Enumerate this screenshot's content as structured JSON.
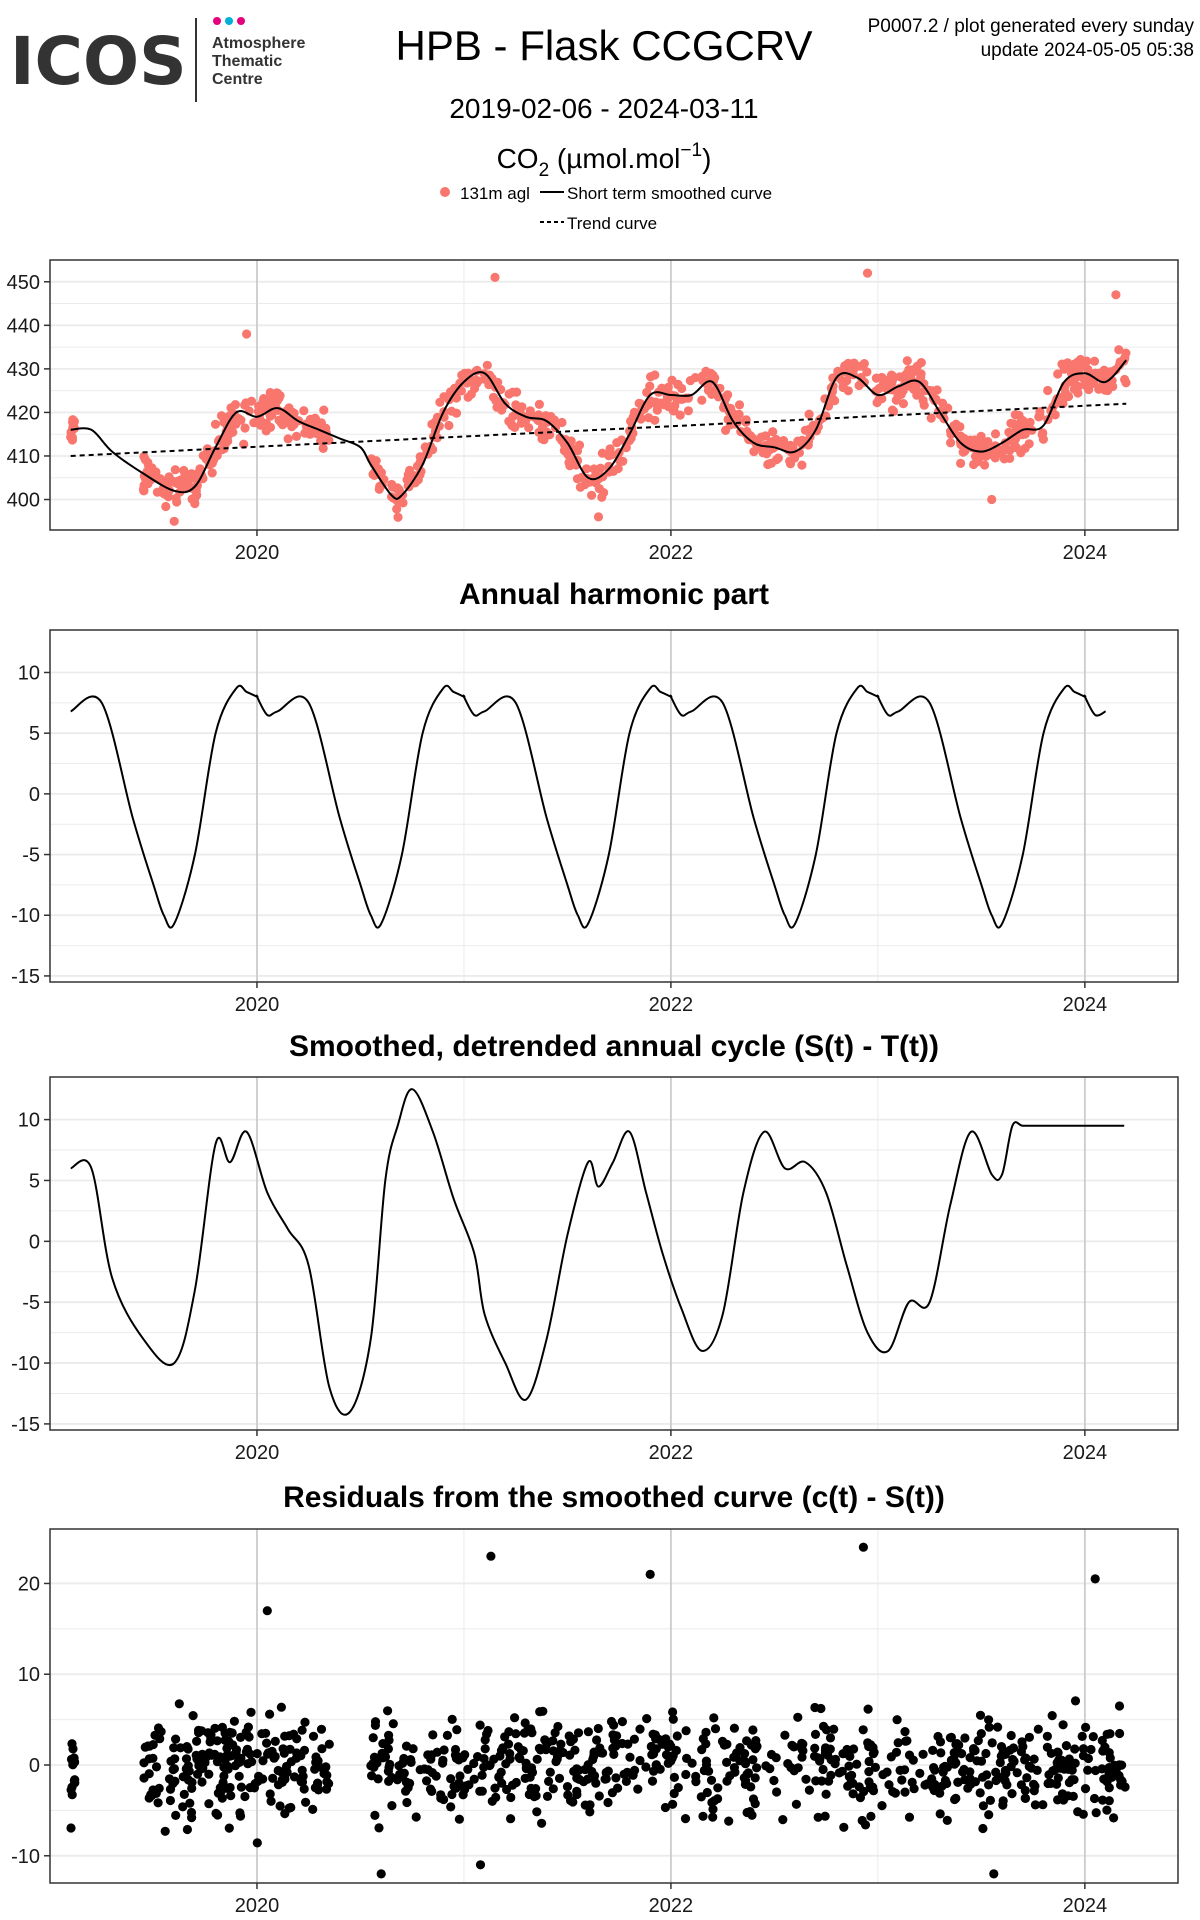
{
  "header": {
    "logo_word": "ICOS",
    "logo_sub": [
      "Atmosphere",
      "Thematic",
      "Centre"
    ],
    "logo_dot_colors": [
      "#e5007e",
      "#00b0d8",
      "#e5007e"
    ],
    "title": "HPB - Flask CCGCRV",
    "date_range": "2019-02-06 - 2024-03-11",
    "species_label": {
      "base": "CO",
      "sub": "2",
      "unit_open": " (µmol.mol",
      "sup": "−1",
      "unit_close": ")"
    },
    "meta_line1": "P0007.2 / plot generated every sunday",
    "meta_line2": "update  2024-05-05 05:38"
  },
  "legend": {
    "points": "131m agl",
    "smoothed": "Short term smoothed curve",
    "trend": "Trend curve"
  },
  "colors": {
    "points": "#f8766d",
    "line": "#000000",
    "grid_major": "#cccccc",
    "grid_minor": "#ebebeb",
    "panel_border": "#333333"
  },
  "chart_data": [
    {
      "type": "scatter",
      "title": "",
      "xlabel": "",
      "ylabel": "",
      "xlim": [
        2019.0,
        2024.45
      ],
      "ylim": [
        393,
        455
      ],
      "x_ticks": [
        2020,
        2022,
        2024
      ],
      "x_tick_labels": [
        "2020",
        "2022",
        "2024"
      ],
      "y_ticks": [
        400,
        410,
        420,
        430,
        440,
        450
      ],
      "y_tick_labels": [
        "400",
        "410",
        "420",
        "430",
        "440",
        "450"
      ],
      "grid": true,
      "series": [
        {
          "name": "131m agl",
          "kind": "points",
          "sample_count": 900,
          "extremes": [
            [
              2019.6,
              395
            ],
            [
              2021.65,
              396
            ],
            [
              2021.15,
              451
            ],
            [
              2022.95,
              452
            ],
            [
              2023.55,
              400
            ],
            [
              2024.15,
              447
            ],
            [
              2019.95,
              438
            ]
          ]
        },
        {
          "name": "Short term smoothed curve",
          "kind": "line",
          "x": [
            2019.1,
            2019.2,
            2019.3,
            2019.45,
            2019.6,
            2019.7,
            2019.8,
            2019.9,
            2020.0,
            2020.1,
            2020.2,
            2020.3,
            2020.4,
            2020.5,
            2020.55,
            2020.65,
            2020.7,
            2020.8,
            2020.9,
            2021.0,
            2021.1,
            2021.2,
            2021.3,
            2021.4,
            2021.5,
            2021.6,
            2021.7,
            2021.8,
            2021.9,
            2022.0,
            2022.1,
            2022.2,
            2022.3,
            2022.4,
            2022.5,
            2022.6,
            2022.7,
            2022.8,
            2022.9,
            2023.0,
            2023.1,
            2023.2,
            2023.3,
            2023.4,
            2023.5,
            2023.6,
            2023.7,
            2023.8,
            2023.9,
            2024.0,
            2024.1,
            2024.2
          ],
          "y": [
            416,
            416,
            411,
            406,
            402,
            403,
            412,
            420,
            419,
            421,
            418,
            416,
            414,
            412,
            408,
            401,
            401,
            408,
            420,
            427,
            429,
            422,
            419,
            418,
            413,
            405,
            407,
            415,
            424,
            424,
            424,
            427,
            418,
            413,
            412,
            411,
            416,
            428,
            428,
            424,
            426,
            427,
            420,
            413,
            411,
            413,
            416,
            417,
            427,
            429,
            427,
            432
          ]
        },
        {
          "name": "Trend curve",
          "kind": "dashed",
          "x": [
            2019.1,
            2024.2
          ],
          "y": [
            410,
            422
          ]
        }
      ]
    },
    {
      "type": "line",
      "title": "Annual harmonic part",
      "xlabel": "",
      "ylabel": "",
      "xlim": [
        2019.0,
        2024.45
      ],
      "ylim": [
        -15.5,
        13.5
      ],
      "x_ticks": [
        2020,
        2022,
        2024
      ],
      "x_tick_labels": [
        "2020",
        "2022",
        "2024"
      ],
      "y_ticks": [
        -15,
        -10,
        -5,
        0,
        5,
        10
      ],
      "y_tick_labels": [
        "-15",
        "-10",
        "-5",
        "0",
        "5",
        "10"
      ],
      "grid": true,
      "series": [
        {
          "kind": "line",
          "periodic": true,
          "period": 1.0,
          "x_start": 2019.1,
          "x_end": 2024.19,
          "x": [
            0.0,
            0.05,
            0.1,
            0.25,
            0.4,
            0.5,
            0.55,
            0.6,
            0.7,
            0.8,
            0.9,
            0.95,
            1.0
          ],
          "y": [
            8.0,
            6.5,
            6.8,
            7.5,
            -2.0,
            -7.5,
            -10.0,
            -10.7,
            -5.0,
            5.0,
            8.7,
            8.4,
            8.0
          ]
        }
      ]
    },
    {
      "type": "line",
      "title": "Smoothed, detrended annual cycle (S(t) - T(t))",
      "xlabel": "",
      "ylabel": "",
      "xlim": [
        2019.0,
        2024.45
      ],
      "ylim": [
        -15.5,
        13.5
      ],
      "x_ticks": [
        2020,
        2022,
        2024
      ],
      "x_tick_labels": [
        "2020",
        "2022",
        "2024"
      ],
      "y_ticks": [
        -15,
        -10,
        -5,
        0,
        5,
        10
      ],
      "y_tick_labels": [
        "-15",
        "-10",
        "-5",
        "0",
        "5",
        "10"
      ],
      "grid": true,
      "series": [
        {
          "kind": "line",
          "x": [
            2019.1,
            2019.2,
            2019.3,
            2019.45,
            2019.6,
            2019.7,
            2019.8,
            2019.87,
            2019.95,
            2020.05,
            2020.15,
            2020.25,
            2020.35,
            2020.45,
            2020.55,
            2020.62,
            2020.68,
            2020.75,
            2020.85,
            2020.95,
            2021.05,
            2021.1,
            2021.2,
            2021.3,
            2021.4,
            2021.5,
            2021.6,
            2021.65,
            2021.72,
            2021.8,
            2021.88,
            2021.96,
            2022.05,
            2022.15,
            2022.25,
            2022.35,
            2022.45,
            2022.55,
            2022.65,
            2022.75,
            2022.85,
            2022.95,
            2023.05,
            2023.15,
            2023.25,
            2023.35,
            2023.45,
            2023.55,
            2023.6,
            2023.65,
            2023.7,
            2023.78,
            2023.86,
            2023.95,
            2024.05,
            2024.15,
            2024.19
          ],
          "y": [
            6.0,
            6.0,
            -3.0,
            -8.0,
            -10.0,
            -4.0,
            8.0,
            6.5,
            9.0,
            4.0,
            1.0,
            -2.0,
            -12.0,
            -14.0,
            -8.0,
            5.0,
            9.5,
            12.5,
            9.0,
            3.5,
            -1.0,
            -6.0,
            -10.0,
            -13.0,
            -8.0,
            0.5,
            6.5,
            4.5,
            6.5,
            9.0,
            4.0,
            -1.0,
            -5.5,
            -9.0,
            -6.0,
            4.0,
            9.0,
            6.0,
            6.5,
            4.0,
            -2.0,
            -7.5,
            -9.0,
            -5.0,
            -5.0,
            3.0,
            9.0,
            5.5,
            5.5,
            9.5,
            9.5,
            9.5,
            9.5,
            9.5,
            9.5,
            9.5,
            9.5
          ]
        }
      ]
    },
    {
      "type": "scatter",
      "title": "Residuals from the smoothed curve (c(t) - S(t))",
      "xlabel": "",
      "ylabel": "",
      "xlim": [
        2019.0,
        2024.45
      ],
      "ylim": [
        -13,
        26
      ],
      "x_ticks": [
        2020,
        2022,
        2024
      ],
      "x_tick_labels": [
        "2020",
        "2022",
        "2024"
      ],
      "y_ticks": [
        -10,
        0,
        10,
        20
      ],
      "y_tick_labels": [
        "-10",
        "0",
        "10",
        "20"
      ],
      "grid": true,
      "series": [
        {
          "kind": "points",
          "sample_count": 900,
          "extremes": [
            [
              2020.6,
              -12
            ],
            [
              2021.08,
              -11
            ],
            [
              2021.13,
              23
            ],
            [
              2021.9,
              21
            ],
            [
              2022.93,
              24
            ],
            [
              2023.56,
              -12
            ],
            [
              2024.05,
              20.5
            ],
            [
              2020.05,
              17
            ]
          ]
        }
      ]
    }
  ]
}
